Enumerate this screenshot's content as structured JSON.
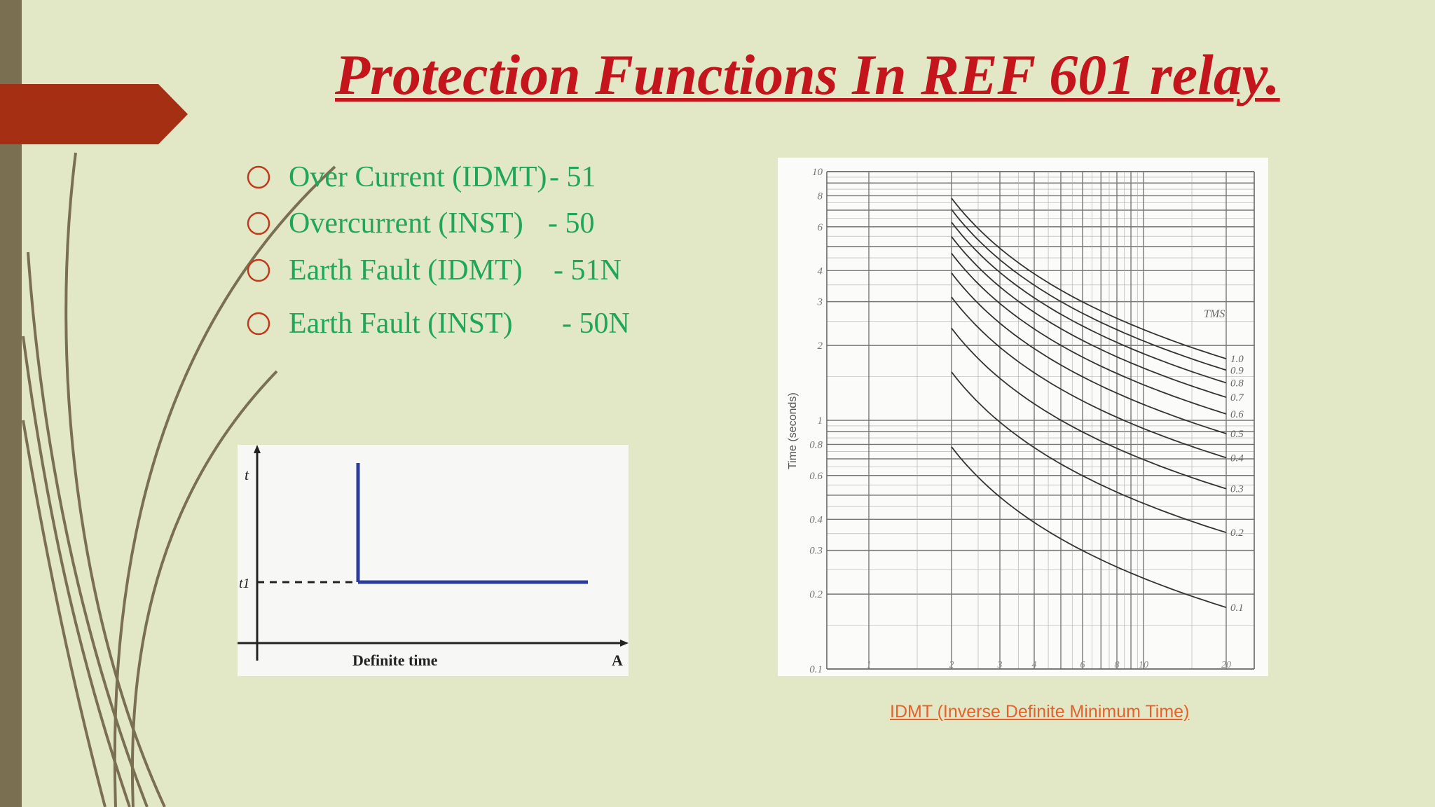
{
  "slide": {
    "title": "Protection Functions In REF 601 relay.",
    "bullets": [
      {
        "label": "Over Current (IDMT)",
        "code": "-  51"
      },
      {
        "label": "Overcurrent (INST)",
        "code": "-  50"
      },
      {
        "label": "Earth Fault    (IDMT)",
        "code": "-   51N"
      },
      {
        "label": "Earth Fault (INST)",
        "code": "-  50N"
      }
    ],
    "definite_time_chart": {
      "y_label": "t",
      "t1_label": "t1",
      "x_caption": "Definite time",
      "x_axis_end": "A"
    },
    "idmt_chart": {
      "y_axis_title": "Time (seconds)",
      "y_ticks": [
        "10",
        "8",
        "6",
        "4",
        "3",
        "2",
        "1",
        "0.8",
        "0.6",
        "0.4",
        "0.3",
        "0.2",
        "0.1"
      ],
      "x_ticks": [
        "1",
        "2",
        "3",
        "4",
        "6",
        "8",
        "10",
        "20"
      ],
      "legend_title": "TMS",
      "tms_labels": [
        "1.0",
        "0.9",
        "0.8",
        "0.7",
        "0.6",
        "0.5",
        "0.4",
        "0.3",
        "0.2",
        "0.1"
      ]
    },
    "caption": "IDMT (Inverse Definite Minimum Time)"
  },
  "colors": {
    "background": "#e2e8c6",
    "left_bar": "#7a7051",
    "arrow_tab": "#a52f13",
    "title": "#c3151b",
    "bullet_text": "#1fa656",
    "bullet_marker": "#c0391b",
    "caption": "#e4612c",
    "definite_time_line": "#2a3d9a"
  }
}
